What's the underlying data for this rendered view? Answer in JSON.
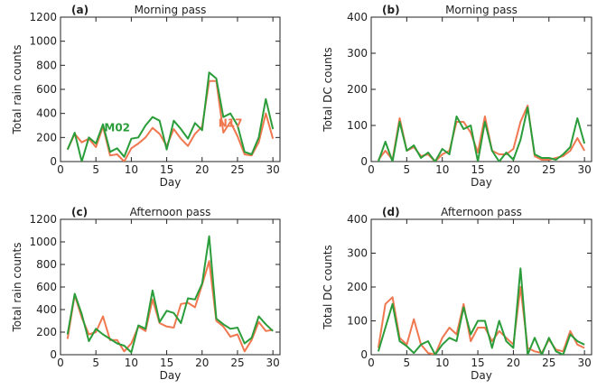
{
  "colors": {
    "N17": "#f07850",
    "M02": "#2a9d3a",
    "axis": "#222222"
  },
  "chart_data": [
    {
      "type": "line",
      "panel_label": "(a)",
      "title": "Morning pass",
      "xlabel": "Day",
      "ylabel": "Total rain counts",
      "xlim": [
        0,
        31
      ],
      "ylim": [
        0,
        1200
      ],
      "xticks": [
        0,
        5,
        10,
        15,
        20,
        25,
        30
      ],
      "yticks": [
        0,
        200,
        400,
        600,
        800,
        1000,
        1200
      ],
      "x": [
        1,
        2,
        3,
        4,
        5,
        6,
        7,
        8,
        9,
        10,
        11,
        12,
        13,
        14,
        15,
        16,
        17,
        18,
        19,
        20,
        21,
        22,
        23,
        24,
        25,
        26,
        27,
        28,
        29,
        30
      ],
      "series": [
        {
          "name": "N17",
          "color": "#f07850",
          "values": [
            100,
            230,
            160,
            190,
            120,
            290,
            50,
            60,
            0,
            110,
            150,
            200,
            280,
            230,
            130,
            270,
            190,
            130,
            230,
            290,
            670,
            670,
            240,
            330,
            210,
            60,
            50,
            160,
            400,
            190
          ]
        },
        {
          "name": "M02",
          "color": "#2a9d3a",
          "values": [
            100,
            240,
            0,
            200,
            150,
            310,
            80,
            110,
            40,
            190,
            200,
            300,
            370,
            340,
            100,
            340,
            270,
            190,
            320,
            260,
            740,
            690,
            370,
            400,
            300,
            80,
            60,
            200,
            520,
            270
          ]
        }
      ],
      "series_labels": [
        {
          "text": "M02",
          "series": "M02",
          "x": 8,
          "y": 250
        },
        {
          "text": "N17",
          "series": "N17",
          "x": 24,
          "y": 290
        }
      ]
    },
    {
      "type": "line",
      "panel_label": "(b)",
      "title": "Morning pass",
      "xlabel": "Day",
      "ylabel": "Total DC counts",
      "xlim": [
        0,
        31
      ],
      "ylim": [
        0,
        400
      ],
      "xticks": [
        0,
        5,
        10,
        15,
        20,
        25,
        30
      ],
      "yticks": [
        0,
        100,
        200,
        300,
        400
      ],
      "x": [
        1,
        2,
        3,
        4,
        5,
        6,
        7,
        8,
        9,
        10,
        11,
        12,
        13,
        14,
        15,
        16,
        17,
        18,
        19,
        20,
        21,
        22,
        23,
        24,
        25,
        26,
        27,
        28,
        29,
        30
      ],
      "series": [
        {
          "name": "N17",
          "color": "#f07850",
          "values": [
            5,
            30,
            5,
            120,
            30,
            40,
            15,
            20,
            0,
            20,
            30,
            110,
            110,
            80,
            25,
            125,
            30,
            20,
            20,
            35,
            110,
            155,
            15,
            5,
            5,
            10,
            15,
            30,
            65,
            30
          ]
        },
        {
          "name": "M02",
          "color": "#2a9d3a",
          "values": [
            0,
            55,
            0,
            110,
            30,
            45,
            10,
            25,
            0,
            35,
            20,
            125,
            90,
            100,
            0,
            110,
            30,
            0,
            25,
            5,
            60,
            150,
            20,
            10,
            10,
            5,
            20,
            40,
            120,
            50
          ]
        }
      ]
    },
    {
      "type": "line",
      "panel_label": "(c)",
      "title": "Afternoon pass",
      "xlabel": "Day",
      "ylabel": "Total rain counts",
      "xlim": [
        0,
        31
      ],
      "ylim": [
        0,
        1200
      ],
      "xticks": [
        0,
        5,
        10,
        15,
        20,
        25,
        30
      ],
      "yticks": [
        0,
        200,
        400,
        600,
        800,
        1000,
        1200
      ],
      "x": [
        1,
        2,
        3,
        4,
        5,
        6,
        7,
        8,
        9,
        10,
        11,
        12,
        13,
        14,
        15,
        16,
        17,
        18,
        19,
        20,
        21,
        22,
        23,
        24,
        25,
        26,
        27,
        28,
        29,
        30
      ],
      "series": [
        {
          "name": "N17",
          "color": "#f07850",
          "values": [
            140,
            530,
            330,
            180,
            200,
            340,
            130,
            130,
            30,
            100,
            250,
            210,
            490,
            280,
            250,
            240,
            450,
            460,
            420,
            620,
            830,
            300,
            250,
            160,
            180,
            30,
            130,
            290,
            210,
            220
          ]
        },
        {
          "name": "M02",
          "color": "#2a9d3a",
          "values": [
            180,
            540,
            360,
            120,
            230,
            180,
            140,
            100,
            80,
            20,
            260,
            230,
            570,
            290,
            390,
            370,
            280,
            500,
            490,
            630,
            1050,
            320,
            270,
            230,
            240,
            100,
            150,
            340,
            270,
            210
          ]
        }
      ]
    },
    {
      "type": "line",
      "panel_label": "(d)",
      "title": "Afternoon pass",
      "xlabel": "Day",
      "ylabel": "Total DC counts",
      "xlim": [
        0,
        31
      ],
      "ylim": [
        0,
        400
      ],
      "xticks": [
        0,
        5,
        10,
        15,
        20,
        25,
        30
      ],
      "yticks": [
        0,
        100,
        200,
        300,
        400
      ],
      "x": [
        1,
        2,
        3,
        4,
        5,
        6,
        7,
        8,
        9,
        10,
        11,
        12,
        13,
        14,
        15,
        16,
        17,
        18,
        19,
        20,
        21,
        22,
        23,
        24,
        25,
        26,
        27,
        28,
        29,
        30
      ],
      "series": [
        {
          "name": "N17",
          "color": "#f07850",
          "values": [
            20,
            150,
            170,
            50,
            30,
            105,
            30,
            5,
            0,
            50,
            80,
            60,
            150,
            40,
            80,
            80,
            40,
            70,
            50,
            30,
            200,
            20,
            10,
            5,
            45,
            15,
            10,
            70,
            30,
            20
          ]
        },
        {
          "name": "M02",
          "color": "#2a9d3a",
          "values": [
            10,
            80,
            150,
            40,
            25,
            5,
            30,
            40,
            0,
            30,
            50,
            40,
            140,
            60,
            100,
            100,
            20,
            100,
            40,
            20,
            255,
            0,
            50,
            0,
            50,
            10,
            0,
            60,
            40,
            30
          ]
        }
      ]
    }
  ]
}
